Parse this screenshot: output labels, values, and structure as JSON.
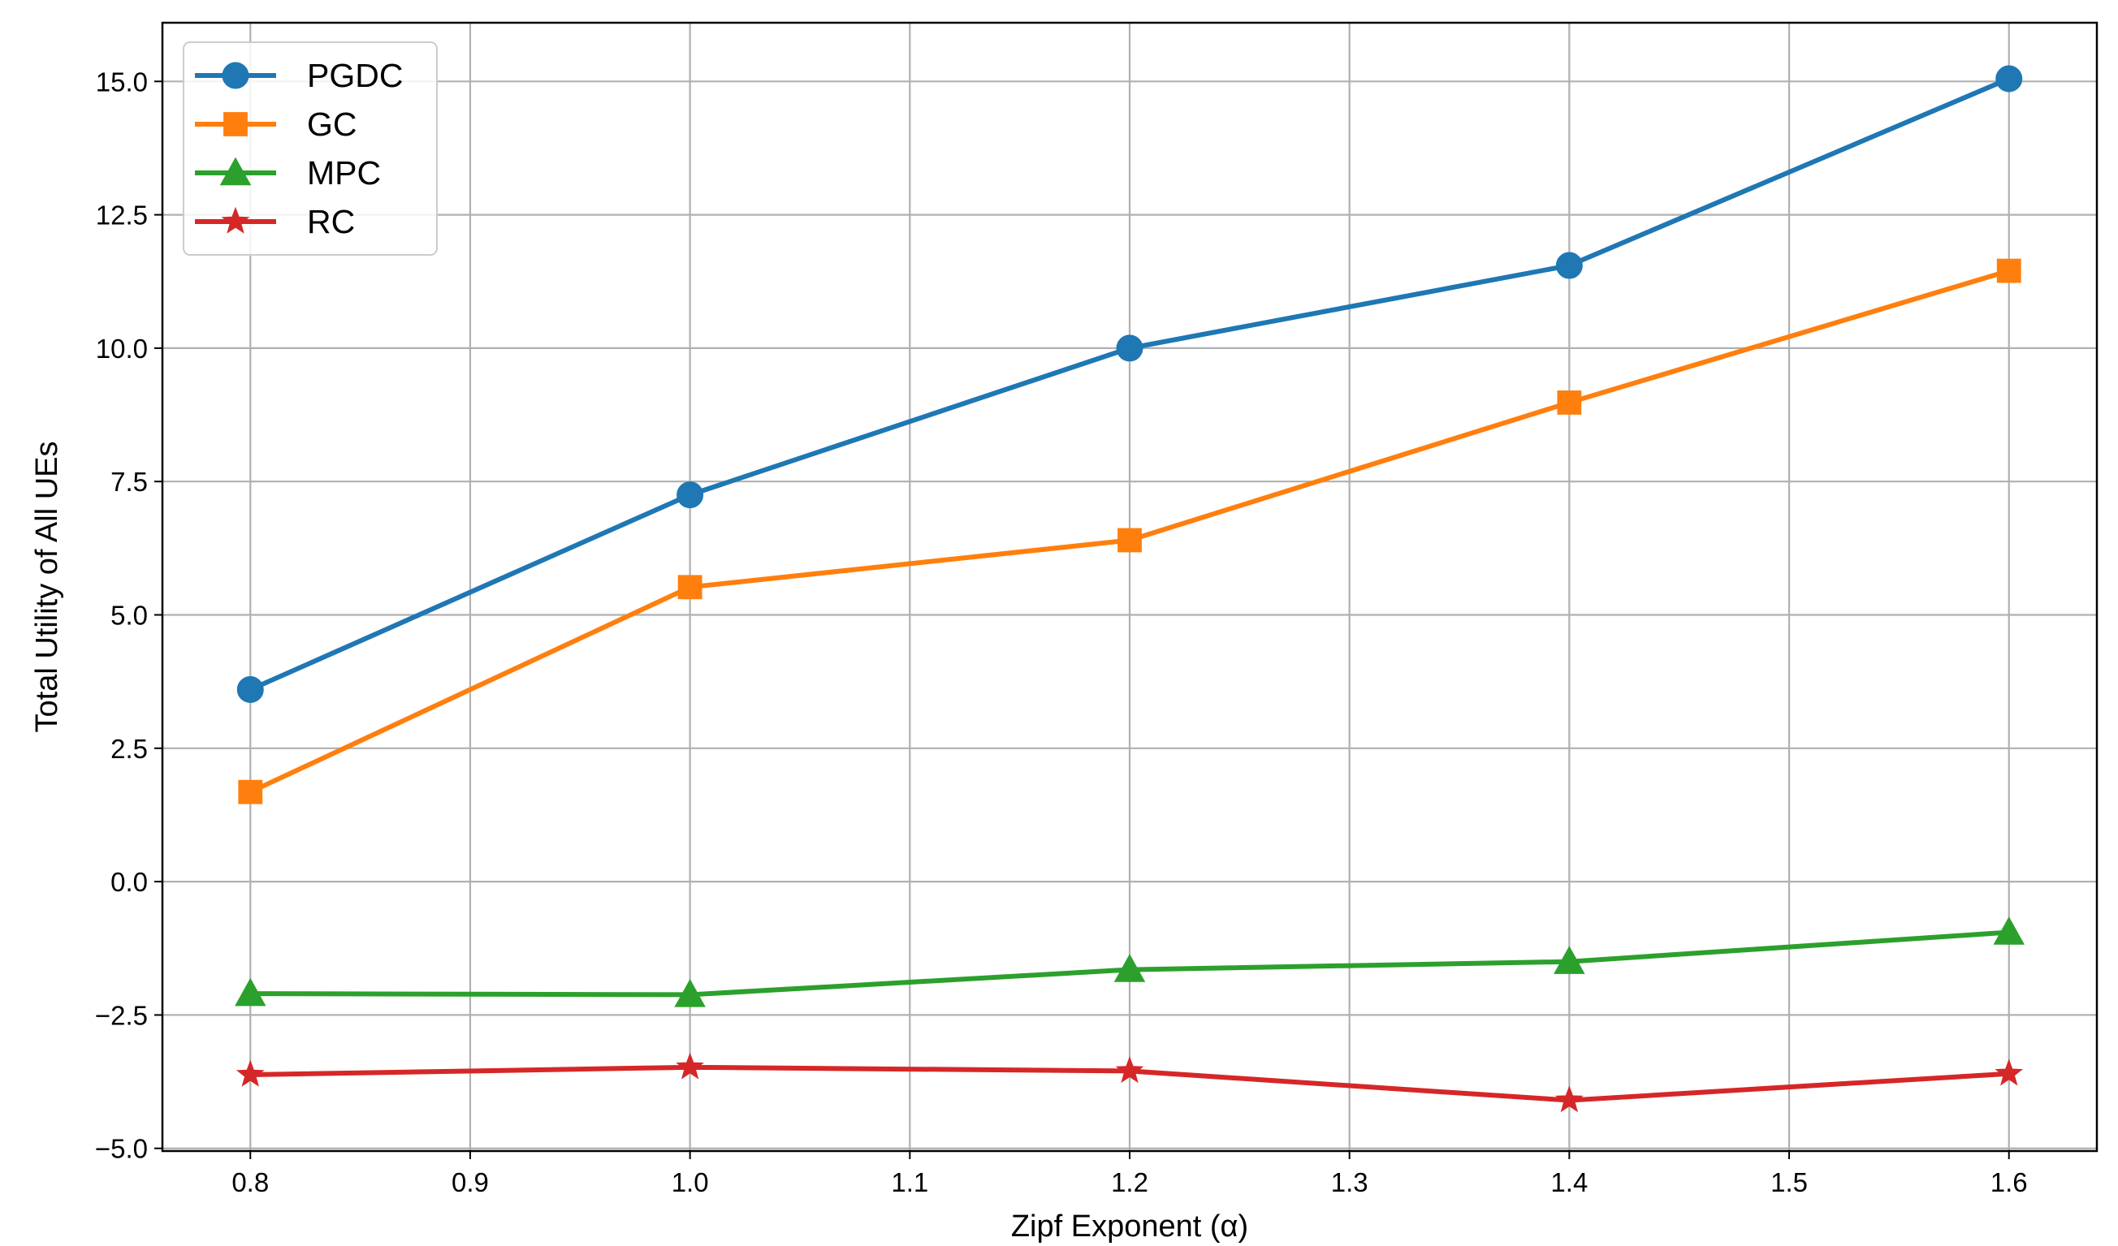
{
  "chart_data": {
    "type": "line",
    "title": "",
    "xlabel": "Zipf Exponent (α)",
    "ylabel": "Total Utility of All UEs",
    "x": [
      0.8,
      1.0,
      1.2,
      1.4,
      1.6
    ],
    "xlim": [
      0.76,
      1.64
    ],
    "ylim": [
      -5.05,
      16.1
    ],
    "xticks": [
      "0.8",
      "0.9",
      "1.0",
      "1.1",
      "1.2",
      "1.3",
      "1.4",
      "1.5",
      "1.6"
    ],
    "yticks": [
      "−5.0",
      "−2.5",
      "0.0",
      "2.5",
      "5.0",
      "7.5",
      "10.0",
      "12.5",
      "15.0"
    ],
    "grid": true,
    "legend_position": "top-left",
    "series": [
      {
        "name": "PGDC",
        "color": "#1f77b4",
        "marker": "circle",
        "values": [
          3.6,
          7.25,
          10.0,
          11.55,
          15.05
        ]
      },
      {
        "name": "GC",
        "color": "#ff7f0e",
        "marker": "square",
        "values": [
          1.68,
          5.52,
          6.4,
          8.98,
          11.45
        ]
      },
      {
        "name": "MPC",
        "color": "#2ca02c",
        "marker": "triangle",
        "values": [
          -2.1,
          -2.12,
          -1.65,
          -1.5,
          -0.95
        ]
      },
      {
        "name": "RC",
        "color": "#d62728",
        "marker": "star",
        "values": [
          -3.62,
          -3.48,
          -3.55,
          -4.1,
          -3.6
        ]
      }
    ]
  }
}
